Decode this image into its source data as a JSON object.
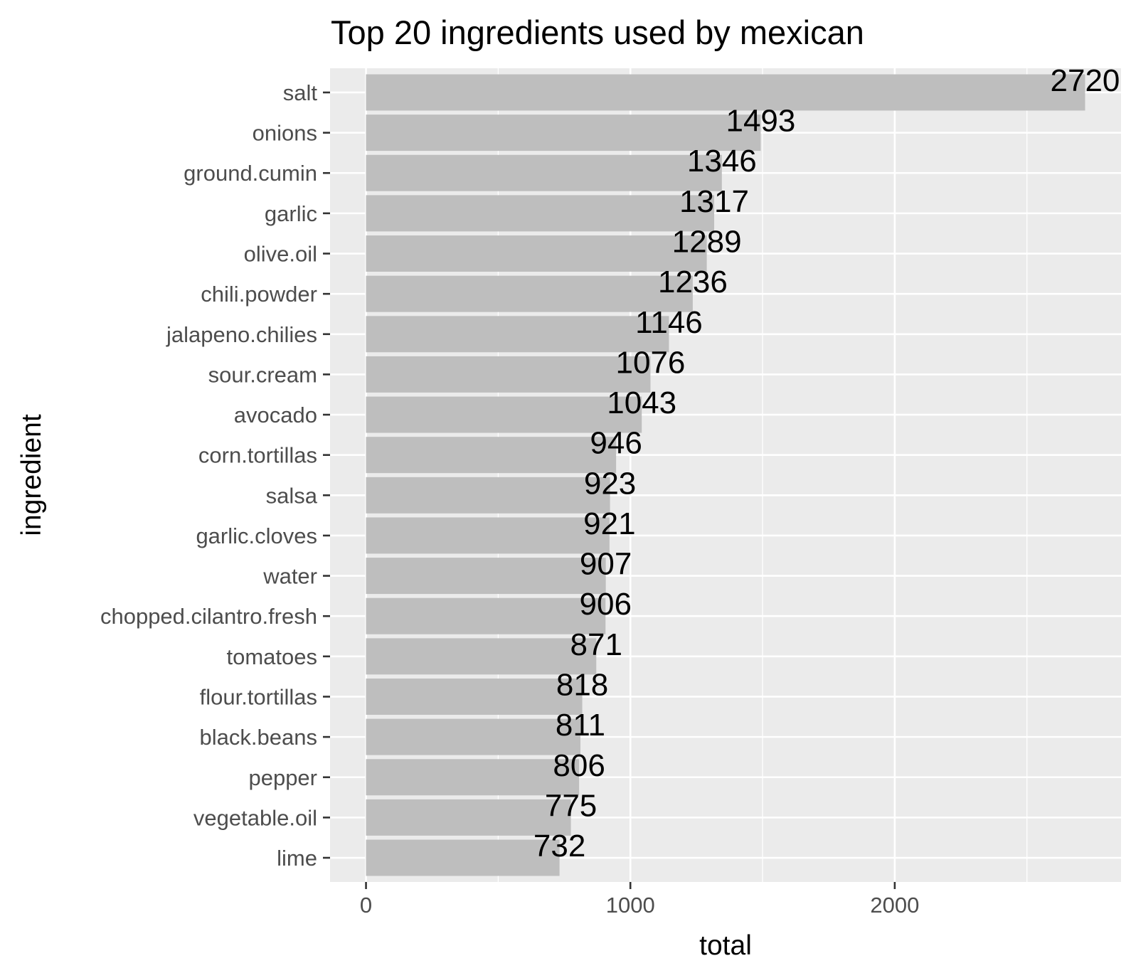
{
  "chart_data": {
    "type": "bar",
    "orientation": "horizontal",
    "title": "Top 20 ingredients used by mexican",
    "xlabel": "total",
    "ylabel": "ingredient",
    "xlim": [
      -136,
      2856
    ],
    "x_ticks": [
      0,
      1000,
      2000
    ],
    "x_minor_ticks": [
      500,
      1500,
      2500
    ],
    "grid": true,
    "legend": "none",
    "colors": {
      "bar": "#bebebe",
      "panel": "#ebebeb",
      "grid": "#ffffff",
      "tick_label": "#4d4d4d",
      "text": "#000000"
    },
    "categories": [
      "salt",
      "onions",
      "ground.cumin",
      "garlic",
      "olive.oil",
      "chili.powder",
      "jalapeno.chilies",
      "sour.cream",
      "avocado",
      "corn.tortillas",
      "salsa",
      "garlic.cloves",
      "water",
      "chopped.cilantro.fresh",
      "tomatoes",
      "flour.tortillas",
      "black.beans",
      "pepper",
      "vegetable.oil",
      "lime"
    ],
    "values": [
      2720,
      1493,
      1346,
      1317,
      1289,
      1236,
      1146,
      1076,
      1043,
      946,
      923,
      921,
      907,
      906,
      871,
      818,
      811,
      806,
      775,
      732
    ]
  }
}
